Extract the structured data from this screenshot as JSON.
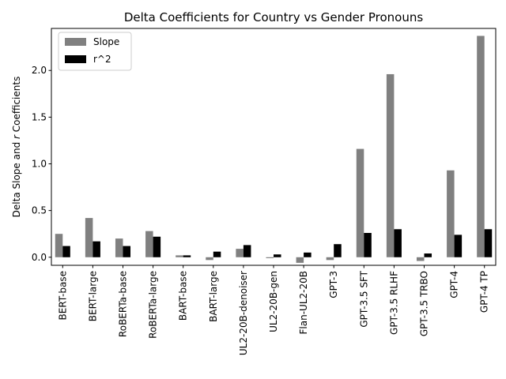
{
  "chart_data": {
    "type": "bar",
    "title": "Delta Coefficients for Country vs Gender Pronouns",
    "xlabel": "",
    "ylabel_prefix": "Delta Slope and ",
    "ylabel_var": "r",
    "ylabel_suffix": " Coefficients",
    "categories": [
      "BERT-base",
      "BERT-large",
      "RoBERTa-base",
      "RoBERTa-large",
      "BART-base",
      "BART-large",
      "UL2-20B-denoiser",
      "UL2-20B-gen",
      "Flan-UL2-20B",
      "GPT-3",
      "GPT-3.5 SFT",
      "GPT-3.5 RLHF",
      "GPT-3.5 TRBO",
      "GPT-4",
      "GPT-4 TP"
    ],
    "series": [
      {
        "name": "Slope",
        "color": "#808080",
        "values": [
          0.25,
          0.42,
          0.2,
          0.28,
          0.02,
          -0.03,
          0.09,
          -0.01,
          -0.06,
          -0.03,
          1.16,
          1.96,
          -0.04,
          0.93,
          2.37
        ]
      },
      {
        "name": "r^2",
        "color": "#000000",
        "values": [
          0.12,
          0.17,
          0.12,
          0.22,
          0.02,
          0.06,
          0.13,
          0.03,
          0.05,
          0.14,
          0.26,
          0.3,
          0.04,
          0.24,
          0.3
        ]
      }
    ],
    "ylim": [
      -0.0865,
      2.45
    ],
    "yticks": [
      "0.0",
      "0.5",
      "1.0",
      "1.5",
      "2.0"
    ],
    "legend_position": "upper left",
    "grid": false
  }
}
